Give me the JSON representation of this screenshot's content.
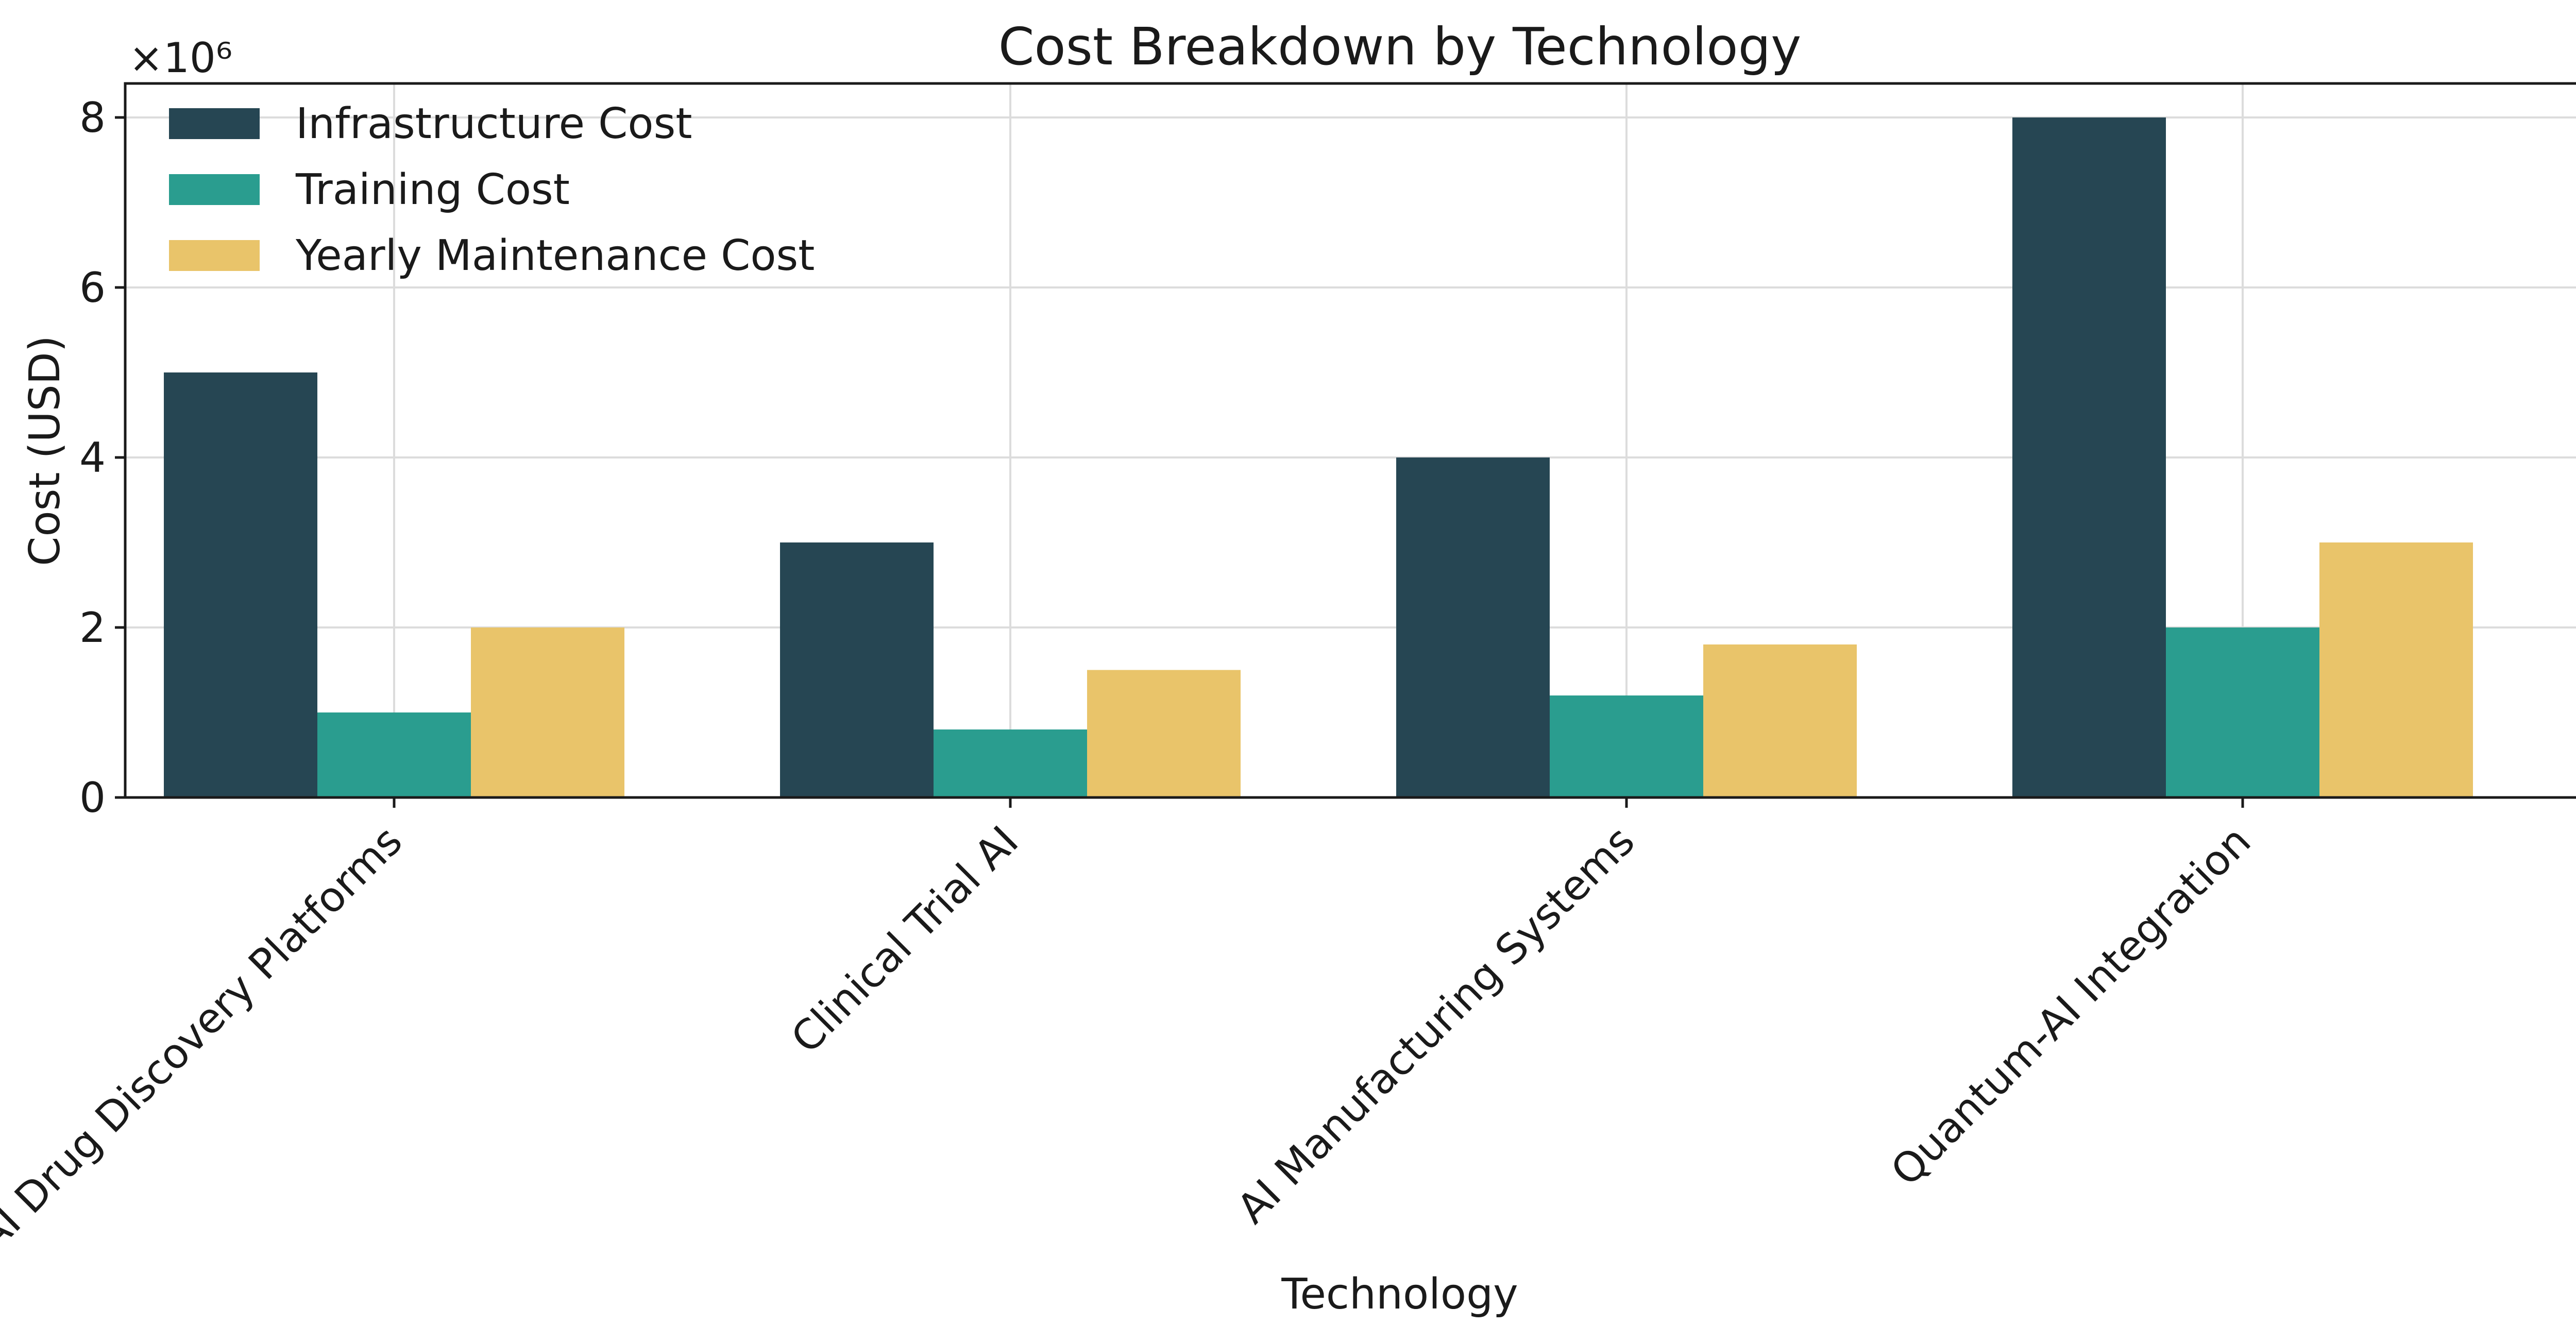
{
  "chart_data": {
    "type": "bar",
    "title": "Cost Breakdown by Technology",
    "xlabel": "Technology",
    "ylabel": "Cost (USD)",
    "y_multiplier_label": "×10⁶",
    "ylim": [
      0,
      8.4
    ],
    "yticks": [
      0,
      2,
      4,
      6,
      8
    ],
    "grid": true,
    "legend_position": "top-left",
    "categories": [
      "AI Drug Discovery Platforms",
      "Clinical Trial AI",
      "AI Manufacturing Systems",
      "Quantum-AI Integration"
    ],
    "series": [
      {
        "name": "Infrastructure Cost",
        "color": "#264653",
        "values": [
          5.0,
          3.0,
          4.0,
          8.0
        ]
      },
      {
        "name": "Training Cost",
        "color": "#2a9d8f",
        "values": [
          1.0,
          0.8,
          1.2,
          2.0
        ]
      },
      {
        "name": "Yearly Maintenance Cost",
        "color": "#e9c46a",
        "values": [
          2.0,
          1.5,
          1.8,
          3.0
        ]
      }
    ]
  }
}
